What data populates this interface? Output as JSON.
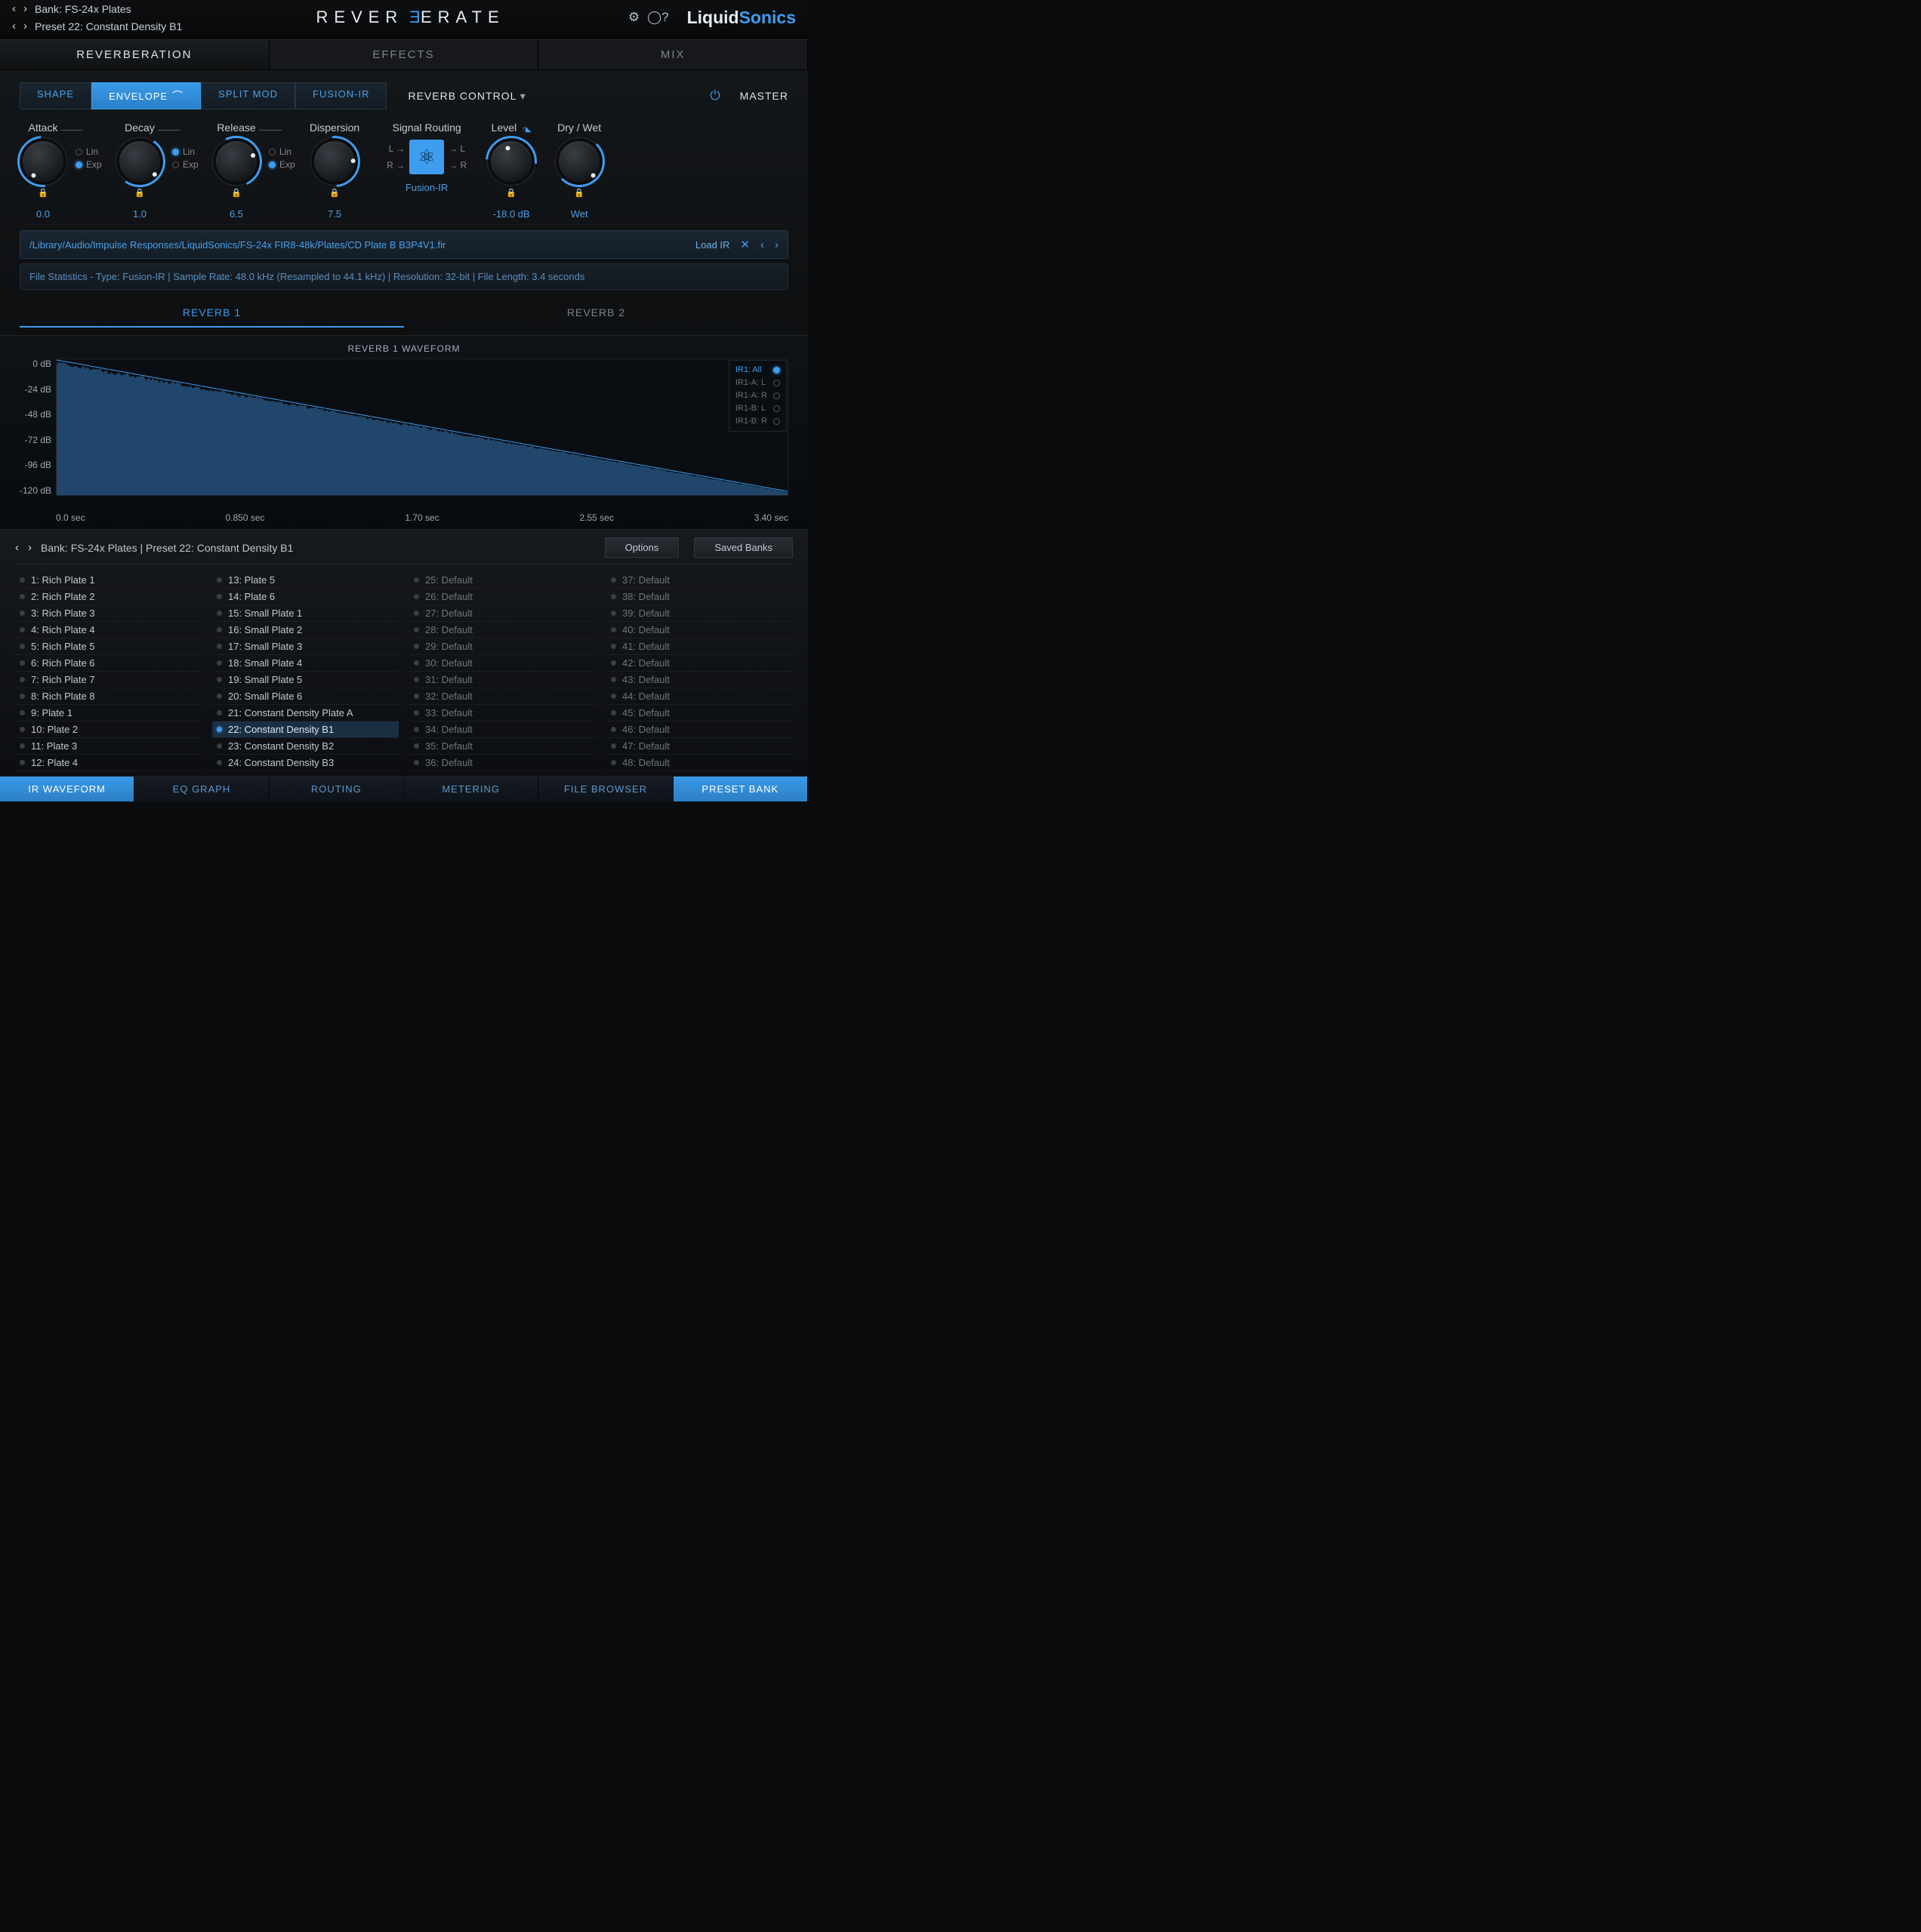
{
  "header": {
    "bank_line": "Bank: FS-24x Plates",
    "preset_line": "Preset 22: Constant Density B1",
    "logo_pre": "REVER",
    "logo_post": "ERATE",
    "brand_a": "Liquid",
    "brand_b": "Sonics"
  },
  "main_tabs": [
    "REVERBERATION",
    "EFFECTS",
    "MIX"
  ],
  "main_tab_active": 0,
  "sub_tabs": [
    "SHAPE",
    "ENVELOPE",
    "SPLIT MOD",
    "FUSION-IR"
  ],
  "sub_tab_active": 1,
  "reverb_control": "REVERB CONTROL",
  "master": "MASTER",
  "knobs": [
    {
      "label": "Attack",
      "value": "0.0",
      "linexp": true,
      "sel": "Exp",
      "ang": -135,
      "arc": -140
    },
    {
      "label": "Decay",
      "value": "1.0",
      "linexp": true,
      "sel": "Lin",
      "ang": 130,
      "arc": 80
    },
    {
      "label": "Release",
      "value": "6.5",
      "linexp": true,
      "sel": "Exp",
      "ang": 60,
      "arc": 20
    },
    {
      "label": "Dispersion",
      "value": "7.5",
      "linexp": false,
      "ang": 80,
      "arc": 40
    }
  ],
  "routing": {
    "label": "Signal Routing",
    "value": "Fusion-IR",
    "L": "L",
    "R": "R"
  },
  "level": {
    "label": "Level",
    "value": "-18.0 dB",
    "ang": -20,
    "arc": -40
  },
  "drywet": {
    "label": "Dry / Wet",
    "value": "Wet",
    "ang": 135,
    "arc": 90
  },
  "file_path": "/Library/Audio/Impulse Responses/LiquidSonics/FS-24x FIR8-48k/Plates/CD Plate B B3P4V1.fir",
  "load_ir": "Load IR",
  "file_stats": "File Statistics - Type: Fusion-IR | Sample Rate: 48.0 kHz (Resampled to 44.1 kHz) | Resolution: 32-bit | File Length: 3.4 seconds",
  "rev_tabs": [
    "REVERB 1",
    "REVERB 2"
  ],
  "rev_tab_active": 0,
  "waveform": {
    "title": "REVERB 1 WAVEFORM",
    "y_labels": [
      "0 dB",
      "-24 dB",
      "-48 dB",
      "-72 dB",
      "-96 dB",
      "-120 dB"
    ],
    "x_labels": [
      "0.0 sec",
      "0.850 sec",
      "1.70 sec",
      "2.55 sec",
      "3.40 sec"
    ],
    "fill_color": "#2a5a8a",
    "stroke_color": "#3f9df0",
    "ir_options": [
      "IR1: All",
      "IR1-A: L",
      "IR1-A: R",
      "IR1-B: L",
      "IR1-B: R"
    ],
    "ir_active": 0
  },
  "preset_header": {
    "line": "Bank: FS-24x Plates | Preset 22: Constant Density B1",
    "options": "Options",
    "saved": "Saved Banks"
  },
  "presets": {
    "selected": 22,
    "col1": [
      "1: Rich Plate 1",
      "2: Rich Plate 2",
      "3: Rich Plate 3",
      "4: Rich Plate 4",
      "5: Rich Plate 5",
      "6: Rich Plate 6",
      "7: Rich Plate 7",
      "8: Rich Plate 8",
      "9: Plate 1",
      "10: Plate 2",
      "11: Plate 3",
      "12: Plate 4"
    ],
    "col2": [
      "13: Plate 5",
      "14: Plate 6",
      "15: Small Plate 1",
      "16: Small Plate 2",
      "17: Small Plate 3",
      "18: Small Plate 4",
      "19: Small Plate 5",
      "20: Small Plate 6",
      "21: Constant Density Plate A",
      "22: Constant Density B1",
      "23: Constant Density B2",
      "24: Constant Density B3"
    ],
    "col3": [
      "25: Default",
      "26: Default",
      "27: Default",
      "28: Default",
      "29: Default",
      "30: Default",
      "31: Default",
      "32: Default",
      "33: Default",
      "34: Default",
      "35: Default",
      "36: Default"
    ],
    "col4": [
      "37: Default",
      "38: Default",
      "39: Default",
      "40: Default",
      "41: Default",
      "42: Default",
      "43: Default",
      "44: Default",
      "45: Default",
      "46: Default",
      "47: Default",
      "48: Default"
    ]
  },
  "bottom_tabs": [
    "IR WAVEFORM",
    "EQ GRAPH",
    "ROUTING",
    "METERING",
    "FILE BROWSER",
    "PRESET BANK"
  ],
  "bottom_active": [
    0,
    5
  ],
  "linexp_labels": {
    "lin": "Lin",
    "exp": "Exp"
  }
}
